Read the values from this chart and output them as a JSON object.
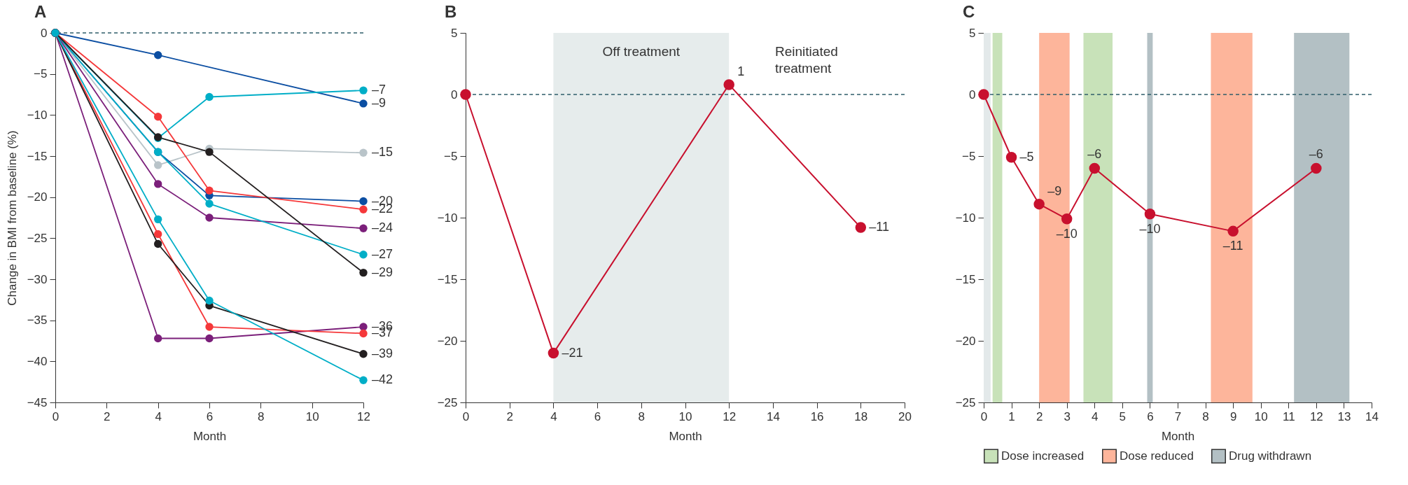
{
  "chart_data": [
    {
      "type": "line",
      "title": "A",
      "xlabel": "Month",
      "ylabel": "Change in BMI from baseline (%)",
      "x": [
        0,
        4,
        6,
        12
      ],
      "xlim": [
        0,
        12
      ],
      "xticks": [
        0,
        2,
        4,
        6,
        8,
        10,
        12
      ],
      "ylim": [
        -45,
        0
      ],
      "yticks": [
        -45,
        -40,
        -35,
        -30,
        -25,
        -20,
        -15,
        -10,
        -5,
        0
      ],
      "marker": "circle",
      "legend": false,
      "ref_lines": [
        {
          "axis": "y",
          "value": 0,
          "line_style": "dashed",
          "color": "#2f5d6a"
        }
      ],
      "series": [
        {
          "color": "#0b4ea2",
          "values": [
            0,
            -2.7,
            null,
            -8.6
          ],
          "value_labels": [
            null,
            null,
            null,
            "–9"
          ]
        },
        {
          "color": "#00aec7",
          "values": [
            0,
            -12.8,
            -7.8,
            -7
          ],
          "value_labels": [
            null,
            null,
            null,
            "–7"
          ]
        },
        {
          "color": "#b9c4c9",
          "values": [
            0,
            -16.1,
            -14.1,
            -14.6
          ],
          "value_labels": [
            null,
            null,
            null,
            "–15"
          ]
        },
        {
          "color": "#0b4ea2",
          "values": [
            0,
            -14.5,
            -19.8,
            -20.5
          ],
          "value_labels": [
            null,
            null,
            null,
            "–20"
          ]
        },
        {
          "color": "#f5383a",
          "values": [
            0,
            -10.2,
            -19.2,
            -21.5
          ],
          "value_labels": [
            null,
            null,
            null,
            "–22"
          ]
        },
        {
          "color": "#7b1f7a",
          "values": [
            0,
            -18.4,
            -22.5,
            -23.8
          ],
          "value_labels": [
            null,
            null,
            null,
            "–24"
          ]
        },
        {
          "color": "#00aec7",
          "values": [
            0,
            -14.5,
            -20.8,
            -27
          ],
          "value_labels": [
            null,
            null,
            null,
            "–27"
          ]
        },
        {
          "color": "#231f20",
          "values": [
            0,
            -12.7,
            -14.5,
            -29.2
          ],
          "value_labels": [
            null,
            null,
            null,
            "–29"
          ]
        },
        {
          "color": "#7b1f7a",
          "values": [
            0,
            -37.2,
            -37.2,
            -35.8
          ],
          "value_labels": [
            null,
            null,
            null,
            "–36"
          ]
        },
        {
          "color": "#f5383a",
          "values": [
            0,
            -24.5,
            -35.8,
            -36.6
          ],
          "value_labels": [
            null,
            null,
            null,
            "–37"
          ]
        },
        {
          "color": "#231f20",
          "values": [
            0,
            -25.7,
            -33.2,
            -39.1
          ],
          "value_labels": [
            null,
            null,
            null,
            "–39"
          ]
        },
        {
          "color": "#00aec7",
          "values": [
            0,
            -22.7,
            -32.6,
            -42.3
          ],
          "value_labels": [
            null,
            null,
            null,
            "–42"
          ]
        }
      ]
    },
    {
      "type": "line",
      "title": "B",
      "xlabel": "Month",
      "x": [
        0,
        4,
        12,
        18
      ],
      "xlim": [
        0,
        20
      ],
      "xticks": [
        0,
        2,
        4,
        6,
        8,
        10,
        12,
        14,
        16,
        18,
        20
      ],
      "ylim": [
        -25,
        5
      ],
      "yticks": [
        -25,
        -20,
        -15,
        -10,
        -5,
        0,
        5
      ],
      "marker": "circle",
      "legend": false,
      "ref_lines": [
        {
          "axis": "y",
          "value": 0,
          "line_style": "dashed",
          "color": "#2f5d6a"
        }
      ],
      "bands": [
        {
          "axis": "x",
          "from": 4,
          "to": 12,
          "label": "Off treatment",
          "color": "#e6ecec"
        }
      ],
      "annotations": [
        "Reinitiated treatment"
      ],
      "series": [
        {
          "color": "#c8102e",
          "values": [
            0,
            -21,
            0.8,
            -10.8
          ],
          "value_labels": [
            null,
            "–21",
            "1",
            "–11"
          ]
        }
      ]
    },
    {
      "type": "line",
      "title": "C",
      "xlabel": "Month",
      "x": [
        0,
        1,
        2,
        3,
        4,
        6,
        9,
        12
      ],
      "xlim": [
        0,
        14
      ],
      "xticks": [
        0,
        1,
        2,
        3,
        4,
        5,
        6,
        7,
        8,
        9,
        10,
        11,
        12,
        13,
        14
      ],
      "ylim": [
        -25,
        5
      ],
      "yticks": [
        -25,
        -20,
        -15,
        -10,
        -5,
        0,
        5
      ],
      "marker": "circle",
      "legend": "bottom",
      "ref_lines": [
        {
          "axis": "y",
          "value": 0,
          "line_style": "dashed",
          "color": "#2f5d6a"
        }
      ],
      "bands": [
        {
          "axis": "x",
          "from": 0,
          "to": 0.25,
          "color": "#e3e9ea"
        },
        {
          "axis": "x",
          "from": 0.32,
          "to": 0.67,
          "label": "Dose increased",
          "color": "#c8e2b9"
        },
        {
          "axis": "x",
          "from": 2,
          "to": 3.1,
          "label": "Dose reduced",
          "color": "#fdb59b"
        },
        {
          "axis": "x",
          "from": 3.6,
          "to": 4.65,
          "color": "#c8e2b9"
        },
        {
          "axis": "x",
          "from": 5.9,
          "to": 6.1,
          "label": "Drug withdrawn",
          "color": "#b3c0c4"
        },
        {
          "axis": "x",
          "from": 8.2,
          "to": 9.7,
          "color": "#fdb59b"
        },
        {
          "axis": "x",
          "from": 11.2,
          "to": 13.2,
          "color": "#b3c0c4"
        }
      ],
      "series": [
        {
          "color": "#c8102e",
          "values": [
            0,
            -5.1,
            -8.9,
            -10.1,
            -6,
            -9.7,
            -11.1,
            -6
          ],
          "value_labels": [
            null,
            "–5",
            "–9",
            "–10",
            "–6",
            "–10",
            "–11",
            "–6"
          ]
        }
      ]
    }
  ]
}
